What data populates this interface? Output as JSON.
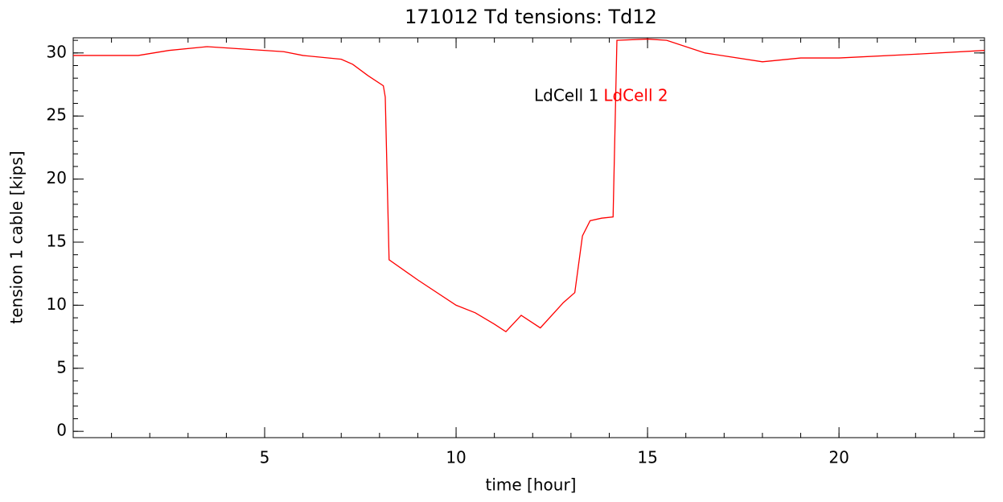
{
  "chart_data": {
    "type": "line",
    "title": "171012 Td tensions: Td12",
    "x_label": "time [hour]",
    "y_label": "tension 1 cable [kips]",
    "x": [
      0,
      1,
      1.7,
      2.5,
      3.5,
      4.5,
      5.5,
      6,
      7,
      7.3,
      7.7,
      8.1,
      8.15,
      8.25,
      9,
      10,
      10.5,
      11,
      11.3,
      11.7,
      12.2,
      12.8,
      13.1,
      13.3,
      13.5,
      13.8,
      14.1,
      14.2,
      15,
      15.5,
      16.5,
      18,
      19,
      20,
      22,
      23.8
    ],
    "series": [
      {
        "name": "LdCell 1",
        "color": "#000000",
        "values": [
          null,
          null,
          null,
          null,
          null,
          null,
          null,
          null,
          null,
          null,
          null,
          null,
          null,
          null,
          null,
          null,
          null,
          null,
          null,
          null,
          null,
          null,
          null,
          null,
          null,
          null,
          null,
          null,
          null,
          null,
          null,
          null,
          null,
          null,
          null,
          null
        ]
      },
      {
        "name": "LdCell 2",
        "color": "#ff0000",
        "values": [
          29.8,
          29.8,
          29.8,
          30.2,
          30.5,
          30.3,
          30.1,
          29.8,
          29.5,
          29.1,
          28.2,
          27.4,
          26.5,
          13.6,
          12,
          10,
          9.4,
          8.5,
          7.9,
          9.2,
          8.2,
          10.2,
          11,
          15.5,
          16.7,
          16.9,
          17,
          31,
          31.1,
          31,
          30,
          29.3,
          29.6,
          29.6,
          29.9,
          30.2
        ]
      }
    ],
    "xlim": [
      0,
      23.8
    ],
    "xticks": [
      5,
      10,
      15,
      20
    ],
    "ylim": [
      -0.5,
      31.2
    ],
    "yticks": [
      0,
      5,
      10,
      15,
      20,
      25,
      30
    ]
  }
}
